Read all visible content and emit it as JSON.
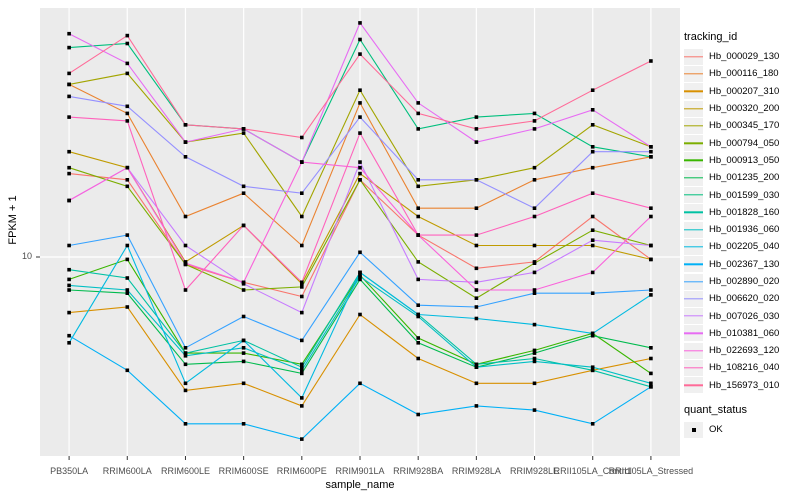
{
  "figure": {
    "y_axis_title": "FPKM + 1",
    "x_axis_title": "sample_name",
    "y_tick_label": "10",
    "legend_title": "tracking_id",
    "quant_legend_title": "quant_status",
    "quant_legend_item": "OK",
    "colors": {
      "panel_bg": "#EBEBEB",
      "grid": "#FFFFFF",
      "axis_text": "#4D4D4D",
      "tick": "#333333",
      "point": "#000000",
      "legend_key_bg": "#F0F0F0"
    }
  },
  "chart_data": {
    "type": "line",
    "title": "",
    "xlabel": "sample_name",
    "ylabel": "FPKM + 1",
    "y_scale": "log10",
    "y_ticks": [
      10
    ],
    "ylim": [
      2,
      80
    ],
    "grid": "major-on",
    "legend_position": "right",
    "point_shape": "filled-square",
    "quant_status_legend": {
      "title": "quant_status",
      "items": [
        "OK"
      ]
    },
    "categories": [
      "PB350LA",
      "RRIM600LA",
      "RRIM600LE",
      "RRIM600SE",
      "RRIM600PE",
      "RRIM901LA",
      "RRIM928BA",
      "RRIM928LA",
      "RRIM928LE",
      "RRII105LA_Control",
      "RRII105LA_Stressed"
    ],
    "series": [
      {
        "name": "Hb_000029_130",
        "color": "#F8766D",
        "values": [
          20,
          19,
          9.4,
          8.1,
          7.2,
          19,
          12,
          9.1,
          9.6,
          14,
          9.8
        ]
      },
      {
        "name": "Hb_000116_180",
        "color": "#EA8331",
        "values": [
          42,
          33,
          14,
          17,
          11,
          36,
          15,
          15,
          19,
          21,
          23
        ]
      },
      {
        "name": "Hb_000207_310",
        "color": "#D89000",
        "values": [
          6.3,
          6.6,
          3.3,
          3.5,
          2.9,
          6.2,
          4.3,
          3.5,
          3.5,
          3.9,
          4.3
        ]
      },
      {
        "name": "Hb_000320_200",
        "color": "#C09B00",
        "values": [
          24,
          21,
          9.6,
          13,
          8.0,
          20,
          14,
          11,
          11,
          11,
          9.8
        ]
      },
      {
        "name": "Hb_000345_170",
        "color": "#A3A500",
        "values": [
          42,
          46,
          26,
          28,
          14,
          40,
          18,
          19,
          21,
          30,
          25
        ]
      },
      {
        "name": "Hb_000794_050",
        "color": "#7CAE00",
        "values": [
          21,
          18,
          9.4,
          7.6,
          7.8,
          19,
          9.6,
          7.1,
          9.5,
          12.5,
          11
        ]
      },
      {
        "name": "Hb_000913_050",
        "color": "#39B600",
        "values": [
          8.3,
          9.8,
          4.5,
          4.5,
          4.1,
          8.6,
          5.1,
          4.1,
          4.6,
          5.3,
          3.8
        ]
      },
      {
        "name": "Hb_001235_200",
        "color": "#00BB4E",
        "values": [
          7.6,
          7.4,
          4.1,
          4.2,
          3.8,
          8.3,
          4.9,
          4.0,
          4.5,
          5.2,
          4.7
        ]
      },
      {
        "name": "Hb_001599_030",
        "color": "#00BF7D",
        "values": [
          57,
          59,
          30,
          29,
          22,
          61,
          29,
          32,
          33,
          25,
          23
        ]
      },
      {
        "name": "Hb_001828_160",
        "color": "#00C1A3",
        "values": [
          9.0,
          8.4,
          4.5,
          5.0,
          4.0,
          8.8,
          6.2,
          4.1,
          4.3,
          3.9,
          3.4
        ]
      },
      {
        "name": "Hb_001936_060",
        "color": "#00BFC4",
        "values": [
          7.9,
          7.6,
          4.4,
          4.7,
          3.9,
          8.5,
          6.1,
          4.0,
          4.2,
          4.0,
          3.5
        ]
      },
      {
        "name": "Hb_002205_040",
        "color": "#00BAE0",
        "values": [
          4.9,
          11,
          3.5,
          5.0,
          3.1,
          8.8,
          6.2,
          6.0,
          5.7,
          5.3,
          7.3
        ]
      },
      {
        "name": "Hb_002367_130",
        "color": "#00B0F6",
        "values": [
          5.2,
          3.9,
          2.5,
          2.5,
          2.2,
          3.5,
          2.7,
          2.9,
          2.8,
          2.5,
          3.4
        ]
      },
      {
        "name": "Hb_002890_020",
        "color": "#35A2FF",
        "values": [
          11,
          12,
          4.7,
          6.1,
          5.0,
          10.4,
          6.7,
          6.6,
          7.4,
          7.4,
          7.6
        ]
      },
      {
        "name": "Hb_006620_020",
        "color": "#9590FF",
        "values": [
          38,
          35,
          23,
          18,
          17,
          32,
          19,
          19,
          15,
          24,
          24
        ]
      },
      {
        "name": "Hb_007026_030",
        "color": "#C77CFF",
        "values": [
          16,
          21,
          11,
          8.0,
          6.3,
          22,
          8.3,
          8.1,
          8.8,
          11.5,
          11
        ]
      },
      {
        "name": "Hb_010381_060",
        "color": "#E76BF3",
        "values": [
          64,
          50,
          26,
          29,
          22,
          70,
          36,
          26,
          29,
          34,
          25
        ]
      },
      {
        "name": "Hb_022693_120",
        "color": "#FA62DB",
        "values": [
          16,
          21,
          9.5,
          8.1,
          22,
          21,
          12,
          7.6,
          7.6,
          8.8,
          14
        ]
      },
      {
        "name": "Hb_108216_040",
        "color": "#FF62BC",
        "values": [
          32,
          31,
          7.6,
          13,
          8.1,
          28,
          12,
          12,
          14,
          17,
          15
        ]
      },
      {
        "name": "Hb_156973_010",
        "color": "#FF6A98",
        "values": [
          46,
          63,
          30,
          29,
          27,
          54,
          33,
          29,
          31,
          40,
          51
        ]
      }
    ]
  }
}
